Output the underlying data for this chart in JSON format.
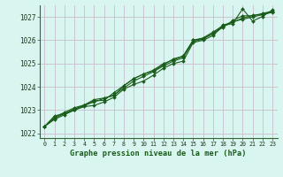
{
  "xlabel": "Graphe pression niveau de la mer (hPa)",
  "bg_color": "#d8f5f0",
  "grid_color": "#c8bece",
  "line_color": "#1a5c1a",
  "plot_bg": "#d8f5f0",
  "xlim": [
    -0.5,
    23.5
  ],
  "ylim": [
    1021.8,
    1027.5
  ],
  "yticks": [
    1022,
    1023,
    1024,
    1025,
    1026,
    1027
  ],
  "xticks": [
    0,
    1,
    2,
    3,
    4,
    5,
    6,
    7,
    8,
    9,
    10,
    11,
    12,
    13,
    14,
    15,
    16,
    17,
    18,
    19,
    20,
    21,
    22,
    23
  ],
  "series": [
    [
      1022.3,
      1022.6,
      1022.8,
      1023.0,
      1023.15,
      1023.2,
      1023.35,
      1023.55,
      1023.9,
      1024.1,
      1024.25,
      1024.5,
      1024.8,
      1025.0,
      1025.1,
      1025.9,
      1026.0,
      1026.2,
      1026.6,
      1026.8,
      1026.9,
      1027.0,
      1027.1,
      1027.2
    ],
    [
      1022.3,
      1022.65,
      1022.85,
      1023.0,
      1023.2,
      1023.35,
      1023.5,
      1023.65,
      1023.95,
      1024.25,
      1024.45,
      1024.65,
      1024.9,
      1025.1,
      1025.25,
      1025.95,
      1026.05,
      1026.3,
      1026.55,
      1026.85,
      1027.05,
      1027.05,
      1027.15,
      1027.25
    ],
    [
      1022.3,
      1022.75,
      1022.85,
      1023.05,
      1023.2,
      1023.4,
      1023.42,
      1023.75,
      1024.05,
      1024.35,
      1024.55,
      1024.68,
      1024.95,
      1025.2,
      1025.32,
      1026.0,
      1026.1,
      1026.35,
      1026.62,
      1026.72,
      1027.35,
      1026.82,
      1027.02,
      1027.3
    ],
    [
      1022.3,
      1022.7,
      1022.9,
      1023.1,
      1023.22,
      1023.45,
      1023.52,
      1023.62,
      1024.05,
      1024.35,
      1024.55,
      1024.72,
      1025.0,
      1025.15,
      1025.32,
      1026.0,
      1026.07,
      1026.27,
      1026.65,
      1026.77,
      1026.95,
      1027.07,
      1027.12,
      1027.22
    ]
  ]
}
